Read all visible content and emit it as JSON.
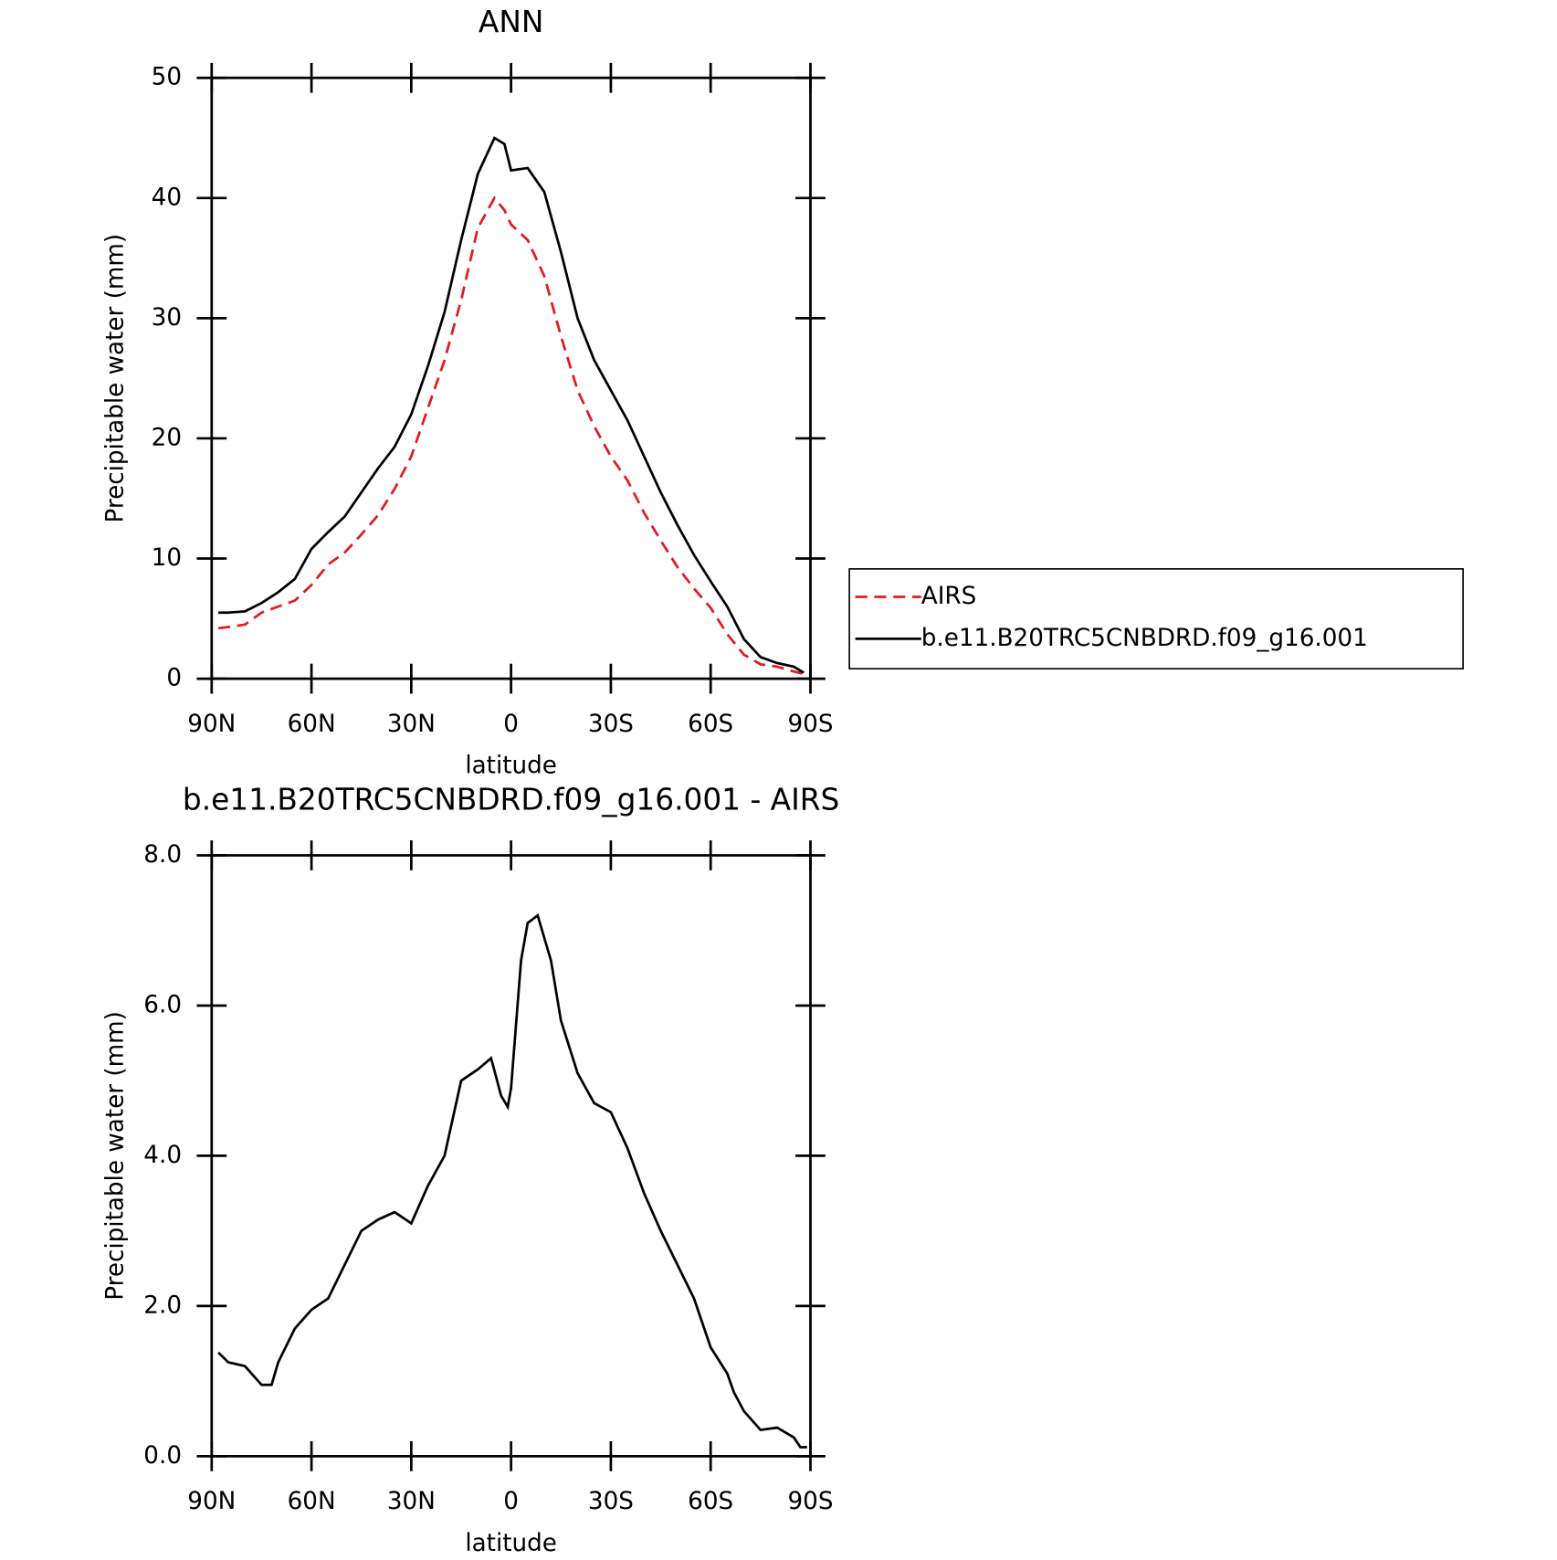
{
  "chart_data": [
    {
      "type": "line",
      "title": "ANN",
      "ylabel": "Precipitable water (mm)",
      "xlabel": "latitude",
      "x": [
        88,
        85,
        80,
        75,
        70,
        65,
        60,
        55,
        50,
        45,
        40,
        35,
        30,
        25,
        20,
        15,
        10,
        5,
        2,
        0,
        -5,
        -10,
        -15,
        -20,
        -25,
        -30,
        -35,
        -40,
        -45,
        -50,
        -55,
        -60,
        -65,
        -70,
        -75,
        -80,
        -85,
        -88
      ],
      "series": [
        {
          "name": "AIRS",
          "color": "#e41a1c",
          "dash": true,
          "values": [
            4.2,
            4.3,
            4.5,
            5.5,
            6.0,
            6.5,
            7.8,
            9.5,
            10.5,
            12.0,
            13.6,
            15.8,
            18.5,
            22.5,
            26.5,
            31.5,
            37.5,
            40,
            39,
            37.8,
            36.5,
            33.5,
            28.5,
            24,
            21,
            18.5,
            16.5,
            13.8,
            11.5,
            9.3,
            7.5,
            5.9,
            3.7,
            2.0,
            1.2,
            1.0,
            0.6,
            0.4
          ]
        },
        {
          "name": "b.e11.B20TRC5CNBDRD.f09_g16.001",
          "color": "#000000",
          "dash": false,
          "values": [
            5.5,
            5.5,
            5.6,
            6.3,
            7.2,
            8.3,
            10.8,
            12.2,
            13.5,
            15.5,
            17.5,
            19.3,
            22.0,
            26,
            30.5,
            36.5,
            42,
            45,
            44.5,
            42.3,
            42.5,
            40.5,
            35.5,
            30,
            26.5,
            24,
            21.5,
            18.5,
            15.5,
            12.8,
            10.3,
            8.1,
            6,
            3.3,
            1.8,
            1.3,
            1.0,
            0.5
          ]
        }
      ],
      "xlim": [
        90,
        -90
      ],
      "ylim": [
        0,
        50
      ],
      "xticks": [
        {
          "value": 90,
          "label": "90N"
        },
        {
          "value": 60,
          "label": "60N"
        },
        {
          "value": 30,
          "label": "30N"
        },
        0,
        {
          "value": -30,
          "label": "30S"
        },
        {
          "value": -60,
          "label": "60S"
        },
        {
          "value": -90,
          "label": "90S"
        }
      ],
      "yticks": [
        0,
        10,
        20,
        30,
        40,
        50
      ],
      "legend": "right"
    },
    {
      "type": "line",
      "title": "b.e11.B20TRC5CNBDRD.f09_g16.001 - AIRS",
      "ylabel": "Precipitable water (mm)",
      "xlabel": "latitude",
      "x": [
        88,
        85,
        80,
        75,
        72,
        70,
        65,
        60,
        55,
        50,
        45,
        40,
        35,
        30,
        25,
        20,
        15,
        10,
        6,
        3,
        1,
        0,
        -3,
        -5,
        -8,
        -12,
        -15,
        -20,
        -25,
        -30,
        -35,
        -40,
        -45,
        -50,
        -55,
        -60,
        -65,
        -67,
        -70,
        -75,
        -80,
        -85,
        -87,
        -89
      ],
      "color": "#000000",
      "values": [
        1.38,
        1.25,
        1.2,
        0.95,
        0.95,
        1.25,
        1.7,
        1.95,
        2.1,
        2.55,
        3.0,
        3.15,
        3.25,
        3.1,
        3.6,
        4.0,
        5.0,
        5.15,
        5.3,
        4.8,
        4.65,
        4.9,
        6.6,
        7.1,
        7.2,
        6.6,
        5.8,
        5.1,
        4.7,
        4.58,
        4.1,
        3.5,
        3.0,
        2.55,
        2.1,
        1.45,
        1.1,
        0.85,
        0.6,
        0.35,
        0.38,
        0.25,
        0.12,
        0.12
      ],
      "xlim": [
        90,
        -90
      ],
      "ylim": [
        0,
        8
      ],
      "xticks": [
        {
          "value": 90,
          "label": "90N"
        },
        {
          "value": 60,
          "label": "60N"
        },
        {
          "value": 30,
          "label": "30N"
        },
        0,
        {
          "value": -30,
          "label": "30S"
        },
        {
          "value": -60,
          "label": "60S"
        },
        {
          "value": -90,
          "label": "90S"
        }
      ],
      "yticks": [
        {
          "value": 0,
          "label": "0.0"
        },
        {
          "value": 2,
          "label": "2.0"
        },
        {
          "value": 4,
          "label": "4.0"
        },
        {
          "value": 6,
          "label": "6.0"
        },
        {
          "value": 8,
          "label": "8.0"
        }
      ]
    }
  ]
}
